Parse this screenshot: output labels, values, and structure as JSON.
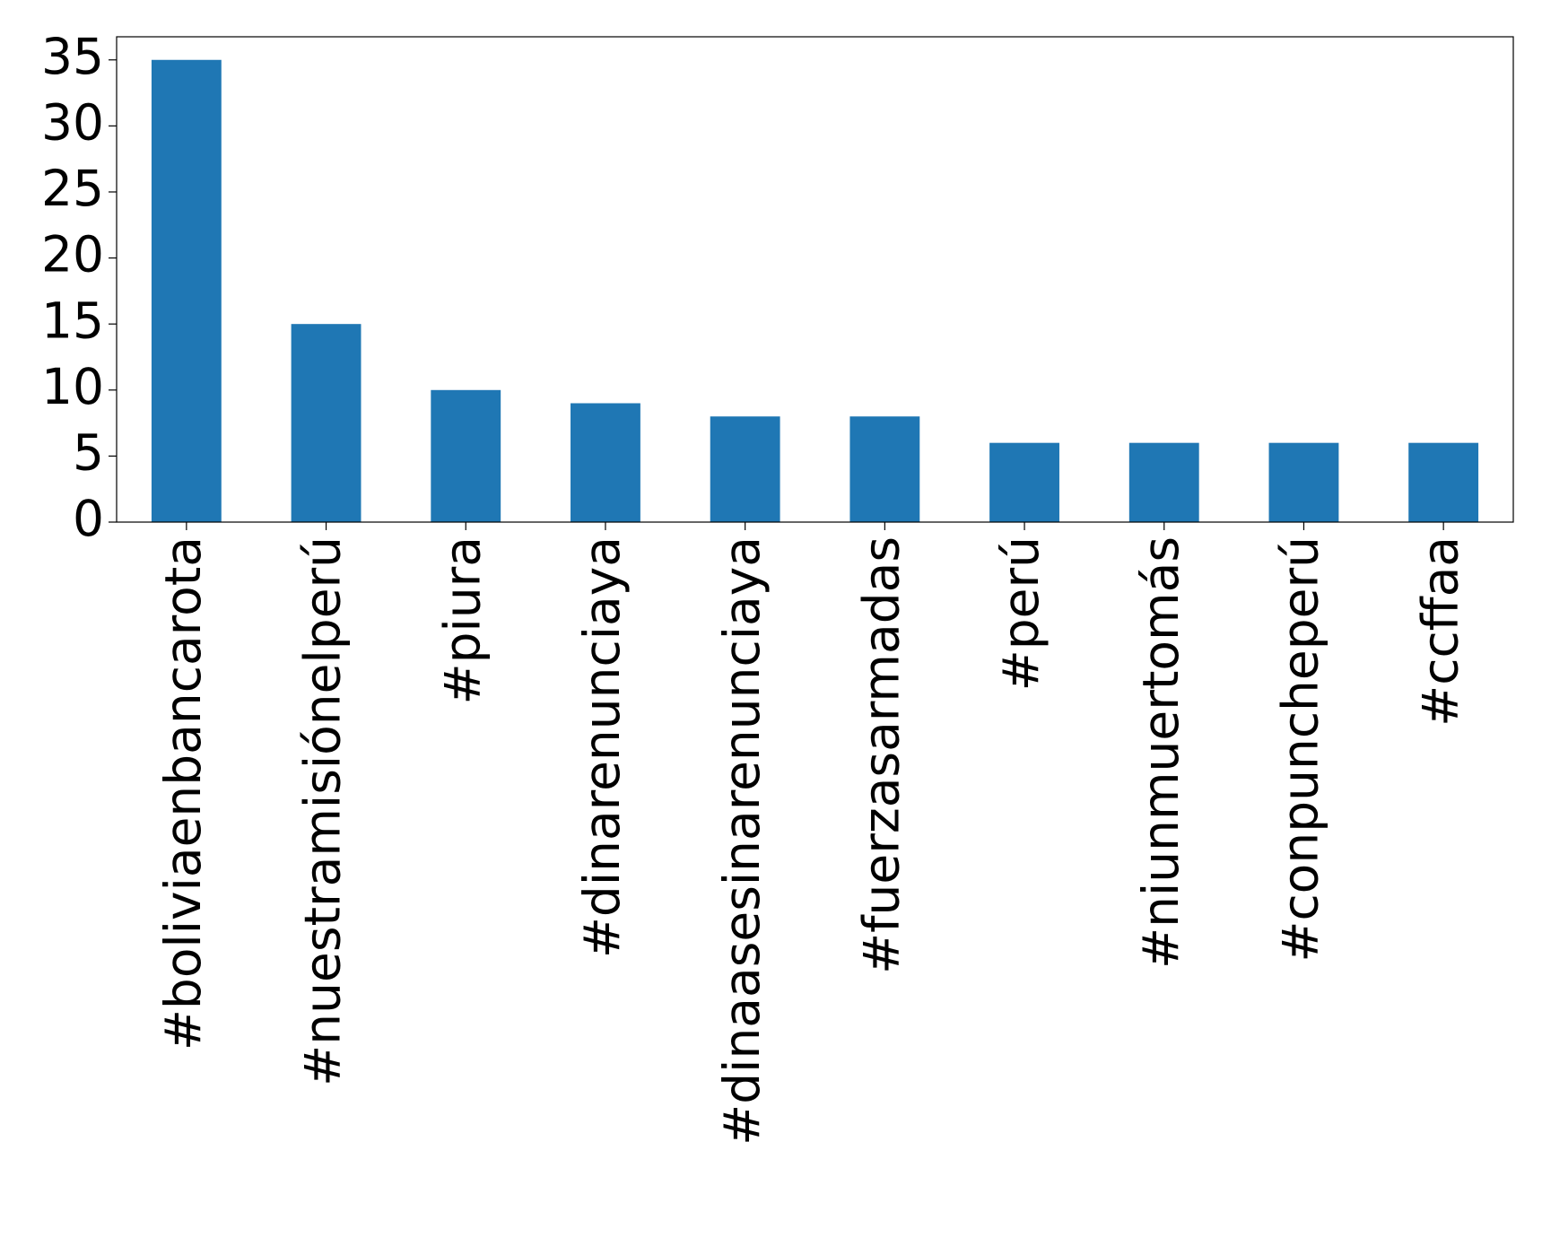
{
  "chart_data": {
    "type": "bar",
    "categories": [
      "#boliviaenbancarota",
      "#nuestramisiónelperú",
      "#piura",
      "#dinarenunciaya",
      "#dinaasesinarenunciaya",
      "#fuerzasarmadas",
      "#perú",
      "#niunmuertomás",
      "#conpuncheperú",
      "#ccffaa"
    ],
    "values": [
      35,
      15,
      10,
      9,
      8,
      8,
      6,
      6,
      6,
      6
    ],
    "color": "#1f77b4",
    "ylim": [
      0,
      36.75
    ],
    "yticks": [
      0,
      5,
      10,
      15,
      20,
      25,
      30,
      35
    ],
    "grid": false
  }
}
